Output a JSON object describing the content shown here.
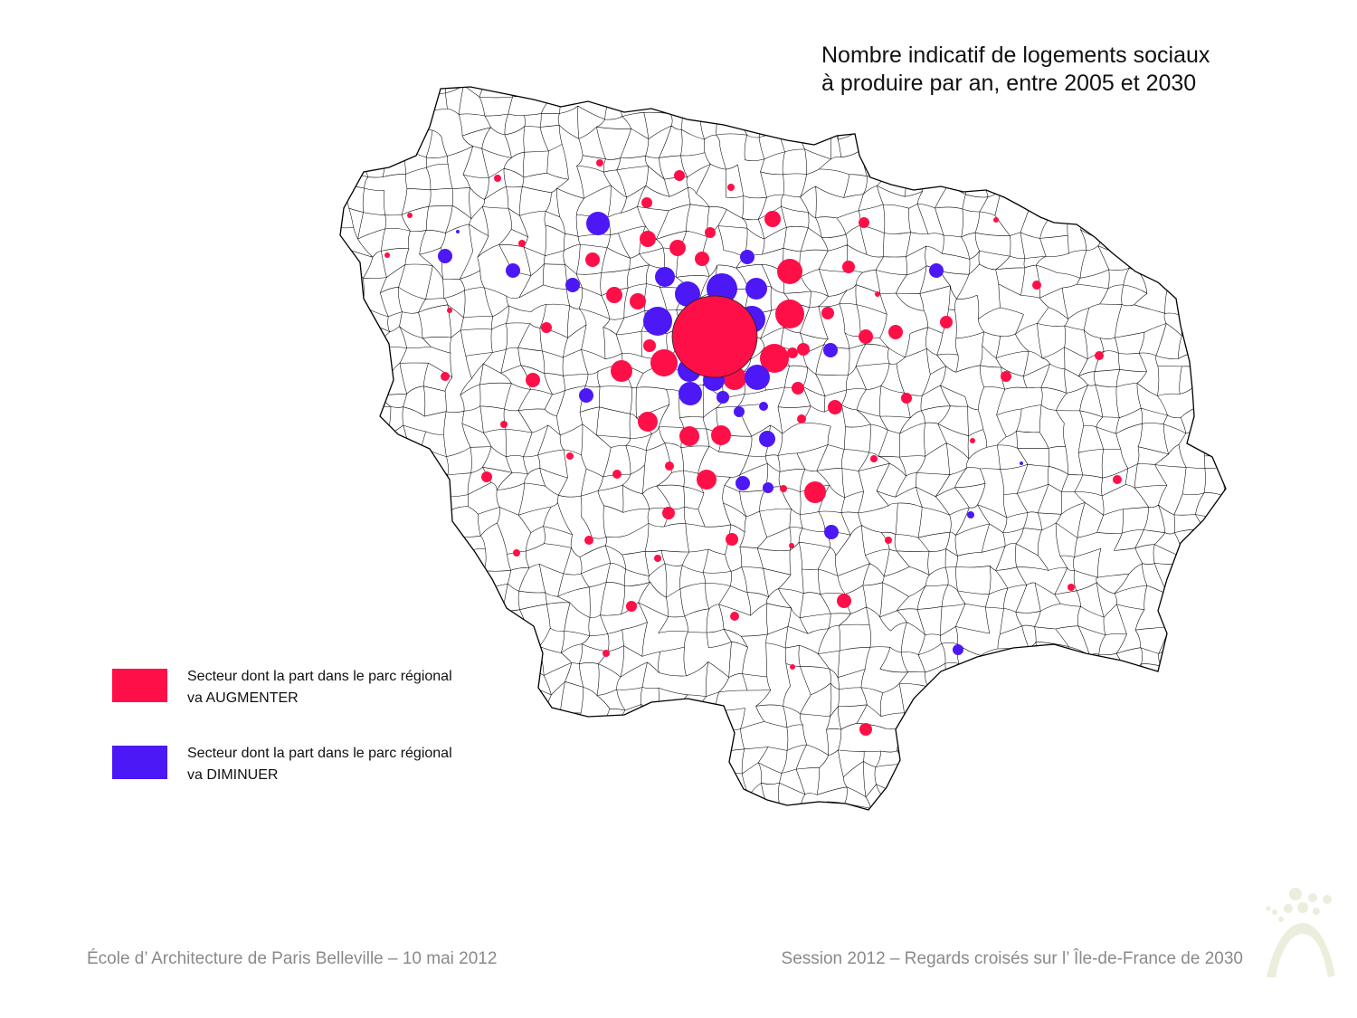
{
  "title": {
    "line1": "Nombre indicatif de logements sociaux",
    "line2": "à produire par an, entre 2005 et 2030"
  },
  "legend": [
    {
      "line1": "Secteur dont la part dans le parc régional",
      "line2": "va AUGMENTER",
      "color": "#ff0f48"
    },
    {
      "line1": "Secteur dont la part dans le parc régional",
      "line2": "va DIMINUER",
      "color": "#4c18f5"
    }
  ],
  "colors": {
    "increase": "#ff0f48",
    "decrease": "#4c18f5",
    "boundary": "#000000",
    "footer_text": "#8a8a8a",
    "logo": "#ebeedc"
  },
  "footer": {
    "left": "École d’ Architecture de Paris Belleville – 10 mai 2012",
    "right": "Session 2012 – Regards croisés sur l’ Île-de-France de 2030"
  },
  "logo": {
    "icon": "school-logo-icon"
  }
}
